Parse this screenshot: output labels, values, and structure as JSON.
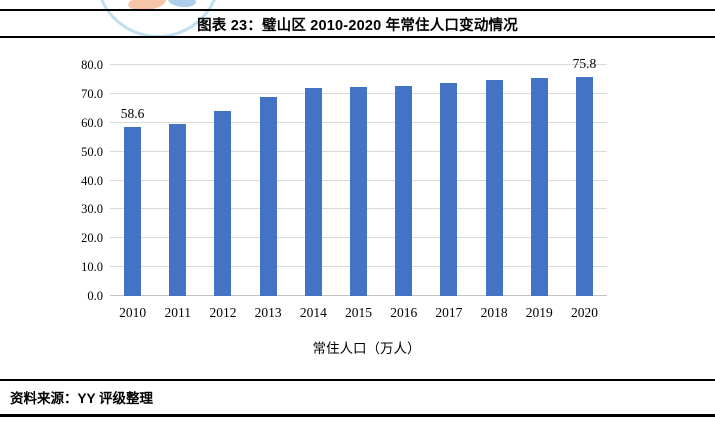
{
  "header": {
    "title": "图表 23：璧山区 2010-2020 年常住人口变动情况"
  },
  "chart_data": {
    "type": "bar",
    "title": "图表 23：璧山区 2010-2020 年常住人口变动情况",
    "categories": [
      "2010",
      "2011",
      "2012",
      "2013",
      "2014",
      "2015",
      "2016",
      "2017",
      "2018",
      "2019",
      "2020"
    ],
    "values": [
      58.6,
      59.7,
      64.0,
      69.0,
      72.0,
      72.5,
      72.9,
      73.9,
      74.8,
      75.5,
      75.8
    ],
    "series_name": "常住人口（万人）",
    "legend": "常住人口（万人）",
    "legend_position": "bottom",
    "xlabel": "",
    "ylabel": "",
    "ylim": [
      0,
      80
    ],
    "ytick_step": 10,
    "ytick_labels": [
      "0.0",
      "10.0",
      "20.0",
      "30.0",
      "40.0",
      "50.0",
      "60.0",
      "70.0",
      "80.0"
    ],
    "grid": true,
    "bar_color": "#4472C4",
    "gridline_color": "#d9d9d9",
    "annotations": [
      {
        "index": 0,
        "text": "58.6"
      },
      {
        "index": 10,
        "text": "75.8"
      }
    ]
  },
  "footer": {
    "source": "资料来源：YY 评级整理"
  }
}
